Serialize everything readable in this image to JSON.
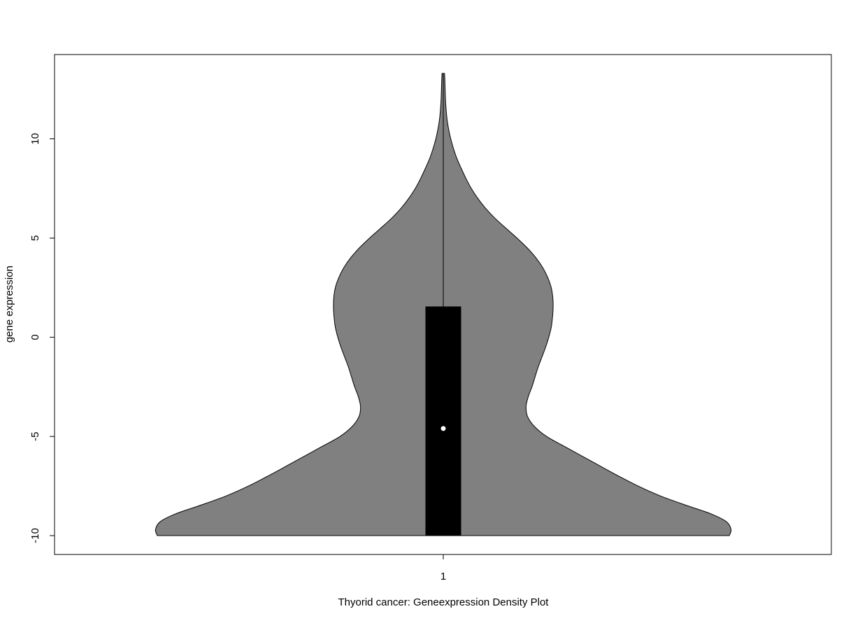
{
  "chart_data": {
    "type": "violin",
    "title": "",
    "xlabel": "Thyorid cancer: Geneexpression Density Plot",
    "ylabel": "gene expression",
    "categories": [
      "1"
    ],
    "ylim": [
      -10.95,
      14.25
    ],
    "y_ticks": [
      -10,
      -5,
      0,
      5,
      10
    ],
    "y_tick_labels": [
      "-10",
      "-5",
      "0",
      "5",
      "10"
    ],
    "x_tick_labels": [
      "1"
    ],
    "grid": false,
    "fill_color": "#808080",
    "box_color": "#000000",
    "median_color": "#ffffff",
    "violin": {
      "y_min": -10,
      "y_max": 13.3,
      "median": -4.6,
      "q1": -10,
      "q3": 1.55,
      "density_profile": [
        {
          "y": -10.0,
          "density": 0.919
        },
        {
          "y": -9.7,
          "density": 0.925
        },
        {
          "y": -9.3,
          "density": 0.91
        },
        {
          "y": -8.9,
          "density": 0.86
        },
        {
          "y": -8.5,
          "density": 0.786
        },
        {
          "y": -8.0,
          "density": 0.698
        },
        {
          "y": -7.5,
          "density": 0.626
        },
        {
          "y": -7.0,
          "density": 0.564
        },
        {
          "y": -6.5,
          "density": 0.505
        },
        {
          "y": -6.0,
          "density": 0.447
        },
        {
          "y": -5.5,
          "density": 0.389
        },
        {
          "y": -5.0,
          "density": 0.332
        },
        {
          "y": -4.5,
          "density": 0.293
        },
        {
          "y": -4.0,
          "density": 0.271
        },
        {
          "y": -3.5,
          "density": 0.266
        },
        {
          "y": -3.0,
          "density": 0.273
        },
        {
          "y": -2.5,
          "density": 0.285
        },
        {
          "y": -2.0,
          "density": 0.295
        },
        {
          "y": -1.5,
          "density": 0.305
        },
        {
          "y": -1.0,
          "density": 0.317
        },
        {
          "y": -0.5,
          "density": 0.329
        },
        {
          "y": 0.0,
          "density": 0.339
        },
        {
          "y": 0.5,
          "density": 0.347
        },
        {
          "y": 1.0,
          "density": 0.351
        },
        {
          "y": 1.5,
          "density": 0.353
        },
        {
          "y": 2.0,
          "density": 0.352
        },
        {
          "y": 2.5,
          "density": 0.347
        },
        {
          "y": 3.0,
          "density": 0.336
        },
        {
          "y": 3.5,
          "density": 0.32
        },
        {
          "y": 4.0,
          "density": 0.298
        },
        {
          "y": 4.5,
          "density": 0.27
        },
        {
          "y": 5.0,
          "density": 0.237
        },
        {
          "y": 5.5,
          "density": 0.201
        },
        {
          "y": 6.0,
          "density": 0.166
        },
        {
          "y": 6.5,
          "density": 0.136
        },
        {
          "y": 7.0,
          "density": 0.111
        },
        {
          "y": 7.5,
          "density": 0.09
        },
        {
          "y": 8.0,
          "density": 0.073
        },
        {
          "y": 8.5,
          "density": 0.058
        },
        {
          "y": 9.0,
          "density": 0.044
        },
        {
          "y": 9.5,
          "density": 0.033
        },
        {
          "y": 10.0,
          "density": 0.024
        },
        {
          "y": 10.5,
          "density": 0.017
        },
        {
          "y": 11.0,
          "density": 0.012
        },
        {
          "y": 11.5,
          "density": 0.009
        },
        {
          "y": 12.0,
          "density": 0.007
        },
        {
          "y": 12.5,
          "density": 0.006
        },
        {
          "y": 13.0,
          "density": 0.005
        },
        {
          "y": 13.3,
          "density": 0.004
        }
      ]
    }
  }
}
